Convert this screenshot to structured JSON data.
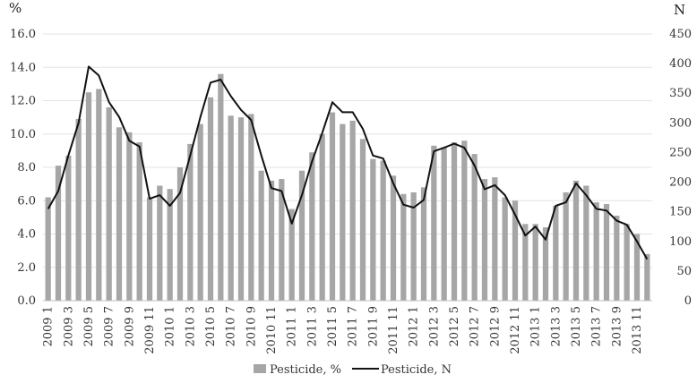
{
  "chart_data": {
    "type": "bar",
    "title": "",
    "xlabel": "",
    "ylabel_left": "%",
    "ylabel_right": "N",
    "ylim_left": [
      0,
      16
    ],
    "ylim_right": [
      0,
      450
    ],
    "yticks_left": [
      "0.0",
      "2.0",
      "4.0",
      "6.0",
      "8.0",
      "10.0",
      "12.0",
      "14.0",
      "16.0"
    ],
    "yticks_right": [
      "0",
      "50",
      "100",
      "150",
      "200",
      "250",
      "300",
      "350",
      "400",
      "450"
    ],
    "grid": "horizontal",
    "legend_position": "bottom",
    "categories": [
      "2009 1",
      "2009 2",
      "2009 3",
      "2009 4",
      "2009 5",
      "2009 6",
      "2009 7",
      "2009 8",
      "2009 9",
      "2009 10",
      "2009 11",
      "2009 12",
      "2010 1",
      "2010 2",
      "2010 3",
      "2010 4",
      "2010 5",
      "2010 6",
      "2010 7",
      "2010 8",
      "2010 9",
      "2010 10",
      "2010 11",
      "2010 12",
      "2011 1",
      "2011 2",
      "2011 3",
      "2011 4",
      "2011 5",
      "2011 6",
      "2011 7",
      "2011 8",
      "2011 9",
      "2011 10",
      "2011 11",
      "2011 12",
      "2012 1",
      "2012 2",
      "2012 3",
      "2012 4",
      "2012 5",
      "2012 6",
      "2012 7",
      "2012 8",
      "2012 9",
      "2012 10",
      "2012 11",
      "2012 12",
      "2013 1",
      "2013 2",
      "2013 3",
      "2013 4",
      "2013 5",
      "2013 6",
      "2013 7",
      "2013 8",
      "2013 9",
      "2013 10",
      "2013 11",
      "2013 12"
    ],
    "tick_labels": [
      "2009 1",
      "2009 3",
      "2009 5",
      "2009 7",
      "2009 9",
      "2009 11",
      "2010 1",
      "2010 3",
      "2010 5",
      "2010 7",
      "2010 9",
      "2010 11",
      "2011 1",
      "2011 3",
      "2011 5",
      "2011 7",
      "2011 9",
      "2011 11",
      "2012 1",
      "2012 3",
      "2012 5",
      "2012 7",
      "2012 9",
      "2012 11",
      "2013 1",
      "2013 3",
      "2013 5",
      "2013 7",
      "2013 9",
      "2013 11"
    ],
    "series": [
      {
        "name": "Pesticide, %",
        "type": "bar",
        "axis": "left",
        "color": "#a6a6a6",
        "values": [
          6.2,
          8.1,
          8.7,
          10.9,
          12.5,
          12.7,
          11.6,
          10.4,
          10.1,
          9.5,
          6.2,
          6.9,
          6.7,
          8.0,
          9.4,
          10.6,
          12.2,
          13.6,
          11.1,
          11.0,
          11.2,
          7.8,
          7.2,
          7.3,
          5.5,
          7.8,
          8.9,
          10.0,
          11.3,
          10.6,
          10.8,
          9.7,
          8.5,
          8.4,
          7.5,
          6.4,
          6.5,
          6.8,
          9.3,
          9.2,
          9.5,
          9.6,
          8.8,
          7.3,
          7.4,
          6.2,
          6.0,
          4.6,
          4.6,
          4.4,
          5.7,
          6.5,
          7.2,
          6.9,
          5.9,
          5.8,
          5.1,
          4.6,
          4.0,
          2.8
        ]
      },
      {
        "name": "Pesticide, N",
        "type": "line",
        "axis": "right",
        "color": "#111111",
        "values": [
          155,
          185,
          245,
          300,
          395,
          380,
          335,
          310,
          270,
          260,
          172,
          178,
          160,
          182,
          245,
          310,
          368,
          373,
          345,
          322,
          305,
          245,
          190,
          185,
          130,
          178,
          235,
          283,
          335,
          318,
          318,
          290,
          245,
          240,
          198,
          162,
          157,
          170,
          252,
          258,
          265,
          258,
          228,
          188,
          195,
          178,
          145,
          110,
          125,
          103,
          160,
          166,
          198,
          178,
          155,
          152,
          135,
          128,
          100,
          70
        ]
      }
    ]
  }
}
